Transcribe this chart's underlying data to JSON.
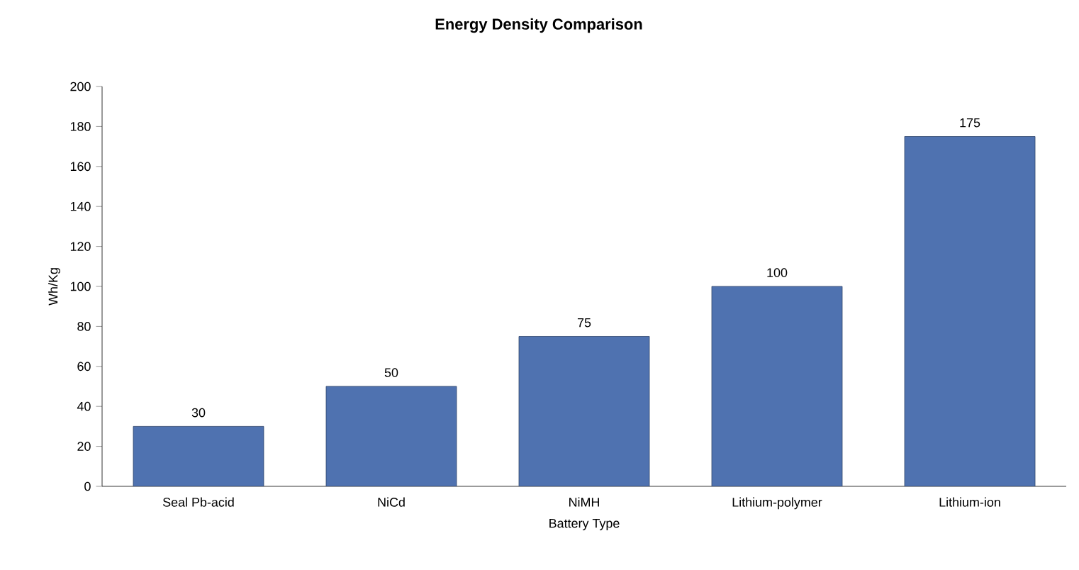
{
  "chart_data": {
    "type": "bar",
    "title": "Energy Density Comparison",
    "xlabel": "Battery Type",
    "ylabel": "Wh/Kg",
    "categories": [
      "Seal Pb-acid",
      "NiCd",
      "NiMH",
      "Lithium-polymer",
      "Lithium-ion"
    ],
    "values": [
      30,
      50,
      75,
      100,
      175
    ],
    "color": "#4f72b0",
    "data_labels": true,
    "ylim": [
      0,
      200
    ],
    "yticks": [
      0,
      20,
      40,
      60,
      80,
      100,
      120,
      140,
      160,
      180,
      200
    ],
    "grid": false
  }
}
